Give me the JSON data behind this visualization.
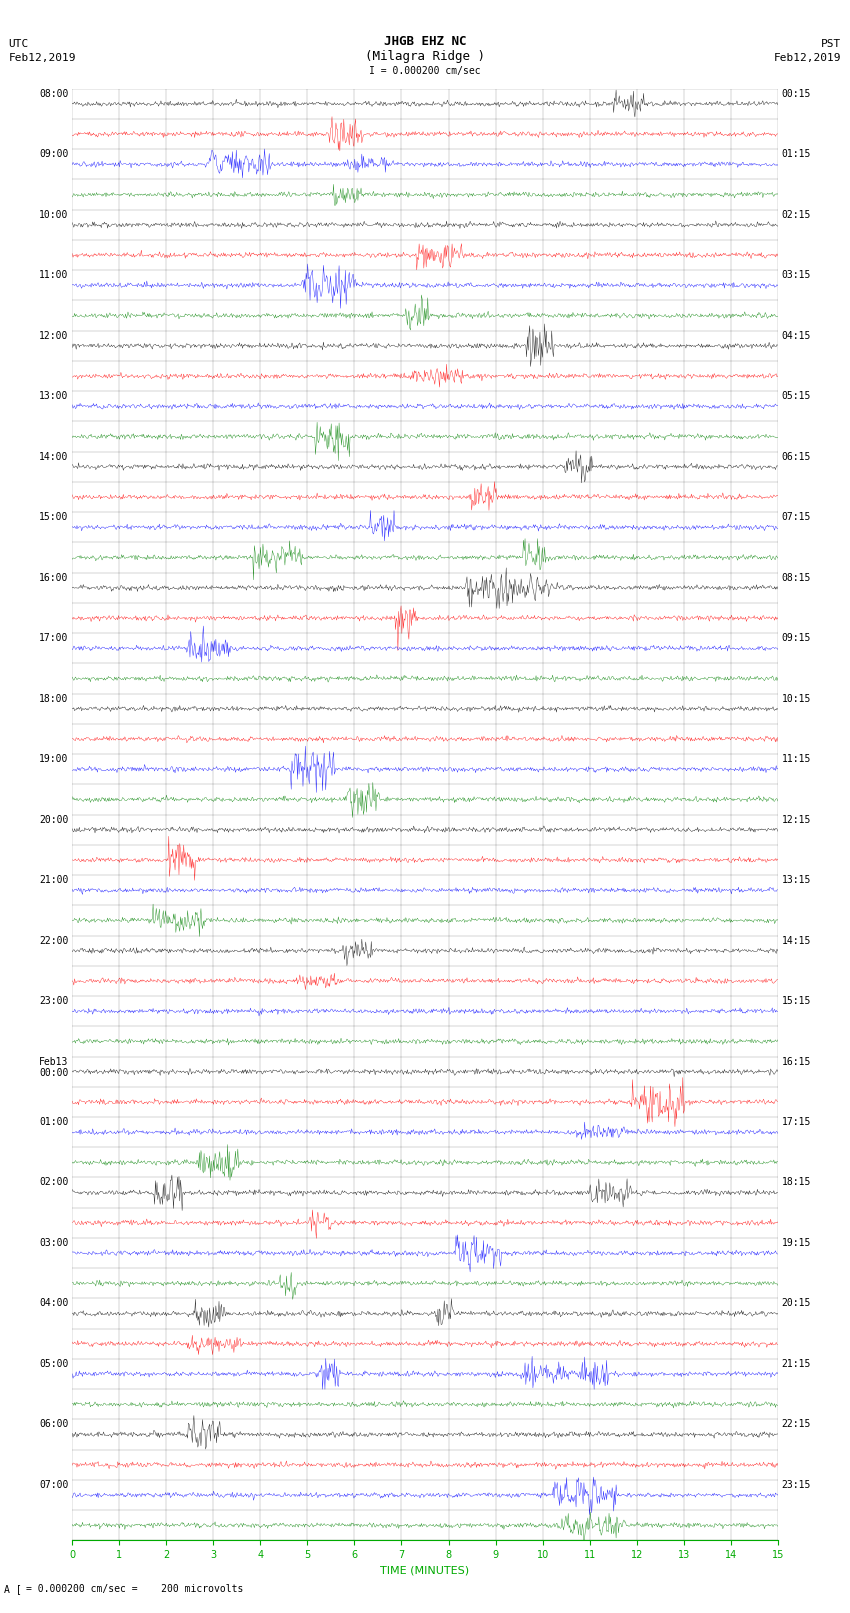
{
  "title_line1": "JHGB EHZ NC",
  "title_line2": "(Milagra Ridge )",
  "title_scale": "I = 0.000200 cm/sec",
  "left_header_line1": "UTC",
  "left_header_line2": "Feb12,2019",
  "right_header_line1": "PST",
  "right_header_line2": "Feb12,2019",
  "xlabel": "TIME (MINUTES)",
  "footer_text": "= 0.000200 cm/sec =    200 microvolts",
  "utc_times": [
    "08:00",
    "",
    "09:00",
    "",
    "10:00",
    "",
    "11:00",
    "",
    "12:00",
    "",
    "13:00",
    "",
    "14:00",
    "",
    "15:00",
    "",
    "16:00",
    "",
    "17:00",
    "",
    "18:00",
    "",
    "19:00",
    "",
    "20:00",
    "",
    "21:00",
    "",
    "22:00",
    "",
    "23:00",
    "",
    "Feb13\n00:00",
    "",
    "01:00",
    "",
    "02:00",
    "",
    "03:00",
    "",
    "04:00",
    "",
    "05:00",
    "",
    "06:00",
    "",
    "07:00",
    ""
  ],
  "pst_times": [
    "00:15",
    "",
    "01:15",
    "",
    "02:15",
    "",
    "03:15",
    "",
    "04:15",
    "",
    "05:15",
    "",
    "06:15",
    "",
    "07:15",
    "",
    "08:15",
    "",
    "09:15",
    "",
    "10:15",
    "",
    "11:15",
    "",
    "12:15",
    "",
    "13:15",
    "",
    "14:15",
    "",
    "15:15",
    "",
    "16:15",
    "",
    "17:15",
    "",
    "18:15",
    "",
    "19:15",
    "",
    "20:15",
    "",
    "21:15",
    "",
    "22:15",
    "",
    "23:15",
    ""
  ],
  "num_traces": 48,
  "minutes": 15,
  "background_color": "#ffffff",
  "trace_color_cycle": [
    "#000000",
    "#ff0000",
    "#0000ff",
    "#008000"
  ],
  "grid_color": "#000000",
  "bottom_axis_color": "#00aa00",
  "tick_label_size": 7,
  "header_size": 8,
  "title_size": 9,
  "figwidth": 8.5,
  "figheight": 16.13
}
